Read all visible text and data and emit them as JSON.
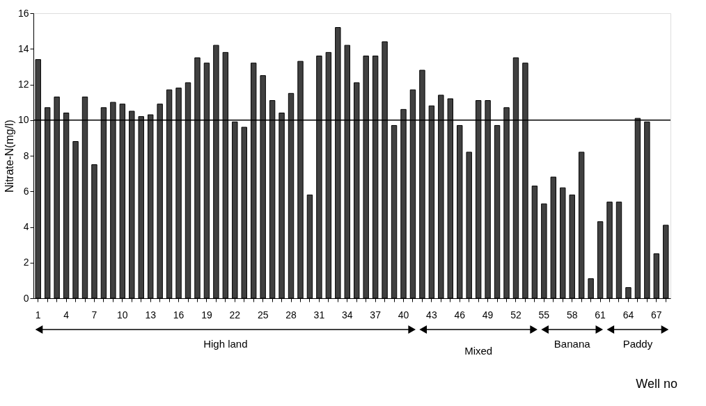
{
  "chart_data": {
    "type": "bar",
    "ylabel": "Nitrate-N(mg/l)",
    "xlabel": "Well no",
    "categories": [
      "1",
      null,
      null,
      "4",
      null,
      null,
      "7",
      null,
      null,
      "10",
      null,
      null,
      "13",
      null,
      null,
      "16",
      null,
      null,
      "19",
      null,
      null,
      "22",
      null,
      null,
      "25",
      null,
      null,
      "28",
      null,
      null,
      "31",
      null,
      null,
      "34",
      null,
      null,
      "37",
      null,
      null,
      "40",
      null,
      null,
      "43",
      null,
      null,
      "46",
      null,
      null,
      "49",
      null,
      null,
      "52",
      null,
      null,
      "55",
      null,
      null,
      "58",
      null,
      null,
      "61",
      null,
      null,
      "64",
      null,
      null,
      "67",
      null
    ],
    "values": [
      13.4,
      10.7,
      11.3,
      10.4,
      8.8,
      11.3,
      7.5,
      10.7,
      11.0,
      10.9,
      10.5,
      10.2,
      10.3,
      10.9,
      11.7,
      11.8,
      12.1,
      13.5,
      13.2,
      14.2,
      13.8,
      9.9,
      9.6,
      13.2,
      12.5,
      11.1,
      10.4,
      11.5,
      13.3,
      5.8,
      13.6,
      13.8,
      15.2,
      14.2,
      12.1,
      13.6,
      13.6,
      14.4,
      9.7,
      10.6,
      11.7,
      12.8,
      10.8,
      11.4,
      11.2,
      9.7,
      8.2,
      11.1,
      11.1,
      9.7,
      10.7,
      13.5,
      13.2,
      6.3,
      5.3,
      6.8,
      6.2,
      5.8,
      8.2,
      1.1,
      4.3,
      5.4,
      5.4,
      0.6,
      10.1,
      9.9,
      2.5,
      4.1
    ],
    "color": "#404040",
    "ylim": [
      0,
      16
    ],
    "yticks": [
      0,
      2,
      4,
      6,
      8,
      10,
      12,
      14,
      16
    ],
    "grid": false,
    "ref_lines": [
      {
        "axis": "y",
        "value": 10,
        "label": null,
        "color": "#000000"
      }
    ],
    "annotations": [
      "High land",
      "Mixed",
      "Banana",
      "Paddy"
    ]
  }
}
